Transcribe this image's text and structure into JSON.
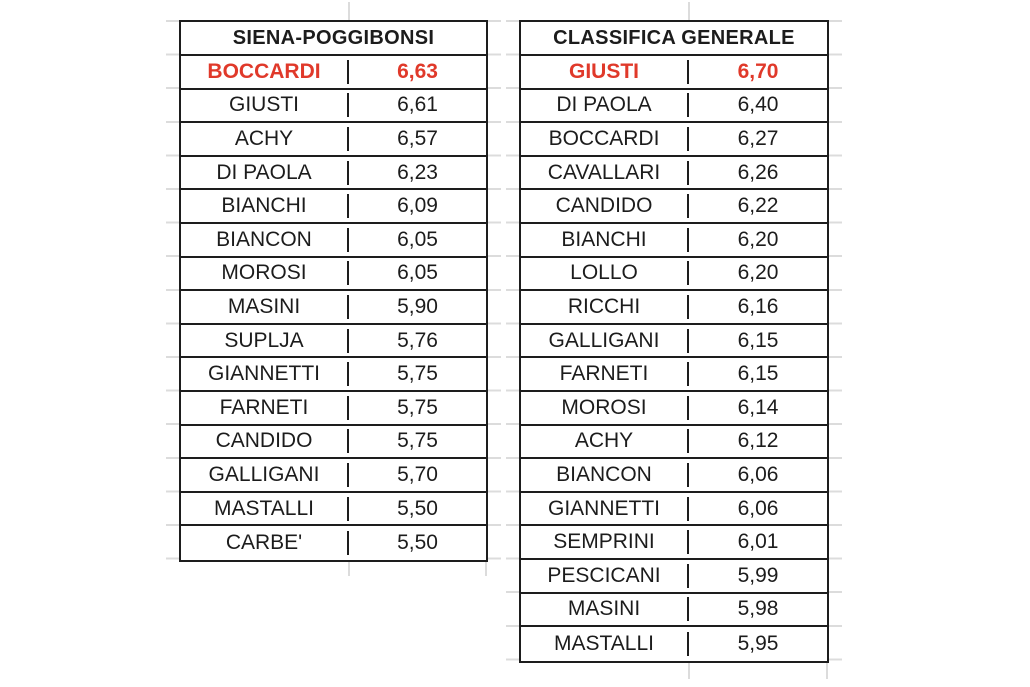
{
  "colors": {
    "background": "#ffffff",
    "border": "#1d1d1d",
    "text": "#1c1c1c",
    "highlight_red": "#e0392a",
    "gridline": "#dcdcdc"
  },
  "tables": [
    {
      "id": "siena-poggibonsi",
      "title": "SIENA-POGGIBONSI",
      "rows": [
        {
          "name": "BOCCARDI",
          "value": "6,63",
          "highlight": true
        },
        {
          "name": "GIUSTI",
          "value": "6,61"
        },
        {
          "name": "ACHY",
          "value": "6,57"
        },
        {
          "name": "DI PAOLA",
          "value": "6,23"
        },
        {
          "name": "BIANCHI",
          "value": "6,09"
        },
        {
          "name": "BIANCON",
          "value": "6,05"
        },
        {
          "name": "MOROSI",
          "value": "6,05"
        },
        {
          "name": "MASINI",
          "value": "5,90"
        },
        {
          "name": "SUPLJA",
          "value": "5,76"
        },
        {
          "name": "GIANNETTI",
          "value": "5,75"
        },
        {
          "name": "FARNETI",
          "value": "5,75"
        },
        {
          "name": "CANDIDO",
          "value": "5,75"
        },
        {
          "name": "GALLIGANI",
          "value": "5,70"
        },
        {
          "name": "MASTALLI",
          "value": "5,50"
        },
        {
          "name": "CARBE'",
          "value": "5,50"
        }
      ]
    },
    {
      "id": "classifica-generale",
      "title": "CLASSIFICA GENERALE",
      "rows": [
        {
          "name": "GIUSTI",
          "value": "6,70",
          "highlight": true
        },
        {
          "name": "DI PAOLA",
          "value": "6,40"
        },
        {
          "name": "BOCCARDI",
          "value": "6,27"
        },
        {
          "name": "CAVALLARI",
          "value": "6,26"
        },
        {
          "name": "CANDIDO",
          "value": "6,22"
        },
        {
          "name": "BIANCHI",
          "value": "6,20"
        },
        {
          "name": "LOLLO",
          "value": "6,20"
        },
        {
          "name": "RICCHI",
          "value": "6,16"
        },
        {
          "name": "GALLIGANI",
          "value": "6,15"
        },
        {
          "name": "FARNETI",
          "value": "6,15"
        },
        {
          "name": "MOROSI",
          "value": "6,14"
        },
        {
          "name": "ACHY",
          "value": "6,12"
        },
        {
          "name": "BIANCON",
          "value": "6,06"
        },
        {
          "name": "GIANNETTI",
          "value": "6,06"
        },
        {
          "name": "SEMPRINI",
          "value": "6,01"
        },
        {
          "name": "PESCICANI",
          "value": "5,99"
        },
        {
          "name": "MASINI",
          "value": "5,98"
        },
        {
          "name": "MASTALLI",
          "value": "5,95"
        }
      ]
    }
  ]
}
